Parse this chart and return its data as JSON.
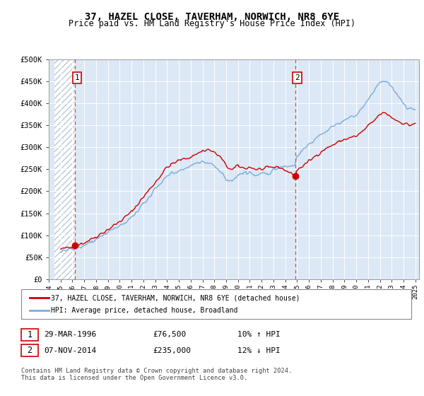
{
  "title": "37, HAZEL CLOSE, TAVERHAM, NORWICH, NR8 6YE",
  "subtitle": "Price paid vs. HM Land Registry's House Price Index (HPI)",
  "ylim": [
    0,
    500000
  ],
  "yticks": [
    0,
    50000,
    100000,
    150000,
    200000,
    250000,
    300000,
    350000,
    400000,
    450000,
    500000
  ],
  "ytick_labels": [
    "£0",
    "£50K",
    "£100K",
    "£150K",
    "£200K",
    "£250K",
    "£300K",
    "£350K",
    "£400K",
    "£450K",
    "£500K"
  ],
  "transaction1": {
    "year": 1996.23,
    "price": 76500,
    "label": "1",
    "date": "29-MAR-1996",
    "hpi_pct": "10% ↑ HPI"
  },
  "transaction2": {
    "year": 2014.85,
    "price": 235000,
    "label": "2",
    "date": "07-NOV-2014",
    "hpi_pct": "12% ↓ HPI"
  },
  "legend_line1": "37, HAZEL CLOSE, TAVERHAM, NORWICH, NR8 6YE (detached house)",
  "legend_line2": "HPI: Average price, detached house, Broadland",
  "footer": "Contains HM Land Registry data © Crown copyright and database right 2024.\nThis data is licensed under the Open Government Licence v3.0.",
  "line_color_red": "#cc0000",
  "line_color_blue": "#7aabdb",
  "background_color": "#dce8f5",
  "hatch_color": "#b8c8d8",
  "hatch_end_year": 1996.23,
  "xlim_left": 1994.5,
  "xlim_right": 2025.3
}
